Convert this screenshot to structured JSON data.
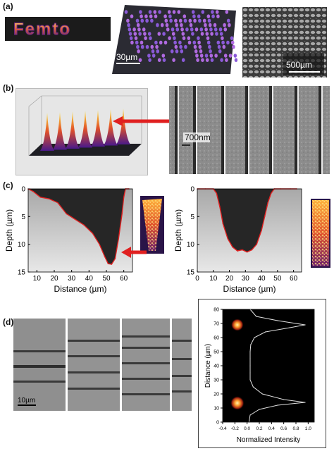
{
  "panels": {
    "a": {
      "label": "(a)",
      "logo_text": "Femto",
      "scale_center": "30µm",
      "scale_right": "500µm"
    },
    "b": {
      "label": "(b)",
      "spacing_label": "700nm"
    },
    "c": {
      "label": "(c)",
      "left_plot": {
        "ylabel": "Depth (µm)",
        "xlabel": "Distance (µm)",
        "xticks": [
          "10",
          "20",
          "30",
          "40",
          "50",
          "60"
        ],
        "yticks": [
          "0",
          "5",
          "10",
          "15"
        ]
      },
      "right_plot": {
        "ylabel": "Depth (µm)",
        "xlabel": "Distance (µm)",
        "xticks": [
          "0",
          "10",
          "20",
          "30",
          "40",
          "50",
          "60"
        ],
        "yticks": [
          "0",
          "5",
          "10",
          "15"
        ]
      }
    },
    "d": {
      "label": "(d)",
      "scale_bar": "10µm",
      "intensity_plot": {
        "ylabel": "Distance (µm)",
        "xlabel": "Normalized Intensity",
        "xticks": [
          "-0.4",
          "-0.2",
          "0.0",
          "0.2",
          "0.4",
          "0.6",
          "0.8",
          "1.0"
        ],
        "yticks": [
          "0",
          "10",
          "20",
          "30",
          "40",
          "50",
          "60",
          "70",
          "80"
        ]
      }
    }
  },
  "colors": {
    "accent_red": "#e02020",
    "heat_low": "#3a1a6a",
    "heat_high": "#ffd23a"
  },
  "chart_data": [
    {
      "type": "line",
      "panel": "c-left",
      "xlabel": "Distance (µm)",
      "ylabel": "Depth (µm)",
      "xlim": [
        5,
        65
      ],
      "ylim": [
        15,
        0
      ],
      "x": [
        5,
        8,
        12,
        17,
        22,
        27,
        32,
        37,
        42,
        46,
        49,
        51,
        53,
        55,
        57,
        59,
        60,
        61,
        63
      ],
      "y": [
        0,
        0.5,
        1.5,
        1.8,
        2.5,
        4.5,
        5.5,
        6.5,
        8.0,
        10.0,
        12.2,
        13.5,
        13.6,
        12.6,
        9.0,
        4.5,
        1.5,
        0,
        0
      ]
    },
    {
      "type": "line",
      "panel": "c-right",
      "xlabel": "Distance (µm)",
      "ylabel": "Depth (µm)",
      "xlim": [
        0,
        65
      ],
      "ylim": [
        15,
        0
      ],
      "x": [
        0,
        5,
        10,
        12,
        14,
        16,
        19,
        22,
        25,
        28,
        31,
        34,
        37,
        40,
        42,
        44,
        46,
        48,
        52,
        58,
        62
      ],
      "y": [
        0,
        0,
        0,
        0.8,
        3.2,
        6.3,
        9.0,
        10.5,
        11.2,
        11.0,
        11.4,
        11.0,
        10.0,
        7.5,
        5.0,
        2.5,
        0.8,
        0,
        0,
        0,
        0
      ]
    },
    {
      "type": "line",
      "panel": "d-right",
      "xlabel": "Normalized Intensity",
      "ylabel": "Distance (µm)",
      "xlim": [
        -0.4,
        1.1
      ],
      "ylim": [
        0,
        80
      ],
      "x": [
        0.03,
        0.05,
        0.2,
        0.5,
        0.95,
        0.6,
        0.25,
        0.1,
        0.05,
        0.05,
        0.05,
        0.05,
        0.05,
        0.06,
        0.12,
        0.3,
        0.7,
        0.95,
        0.5,
        0.15,
        0.05
      ],
      "y": [
        0,
        5,
        9,
        12,
        14,
        16,
        20,
        25,
        30,
        35,
        40,
        45,
        50,
        55,
        60,
        64,
        67,
        69,
        72,
        75,
        80
      ]
    }
  ]
}
